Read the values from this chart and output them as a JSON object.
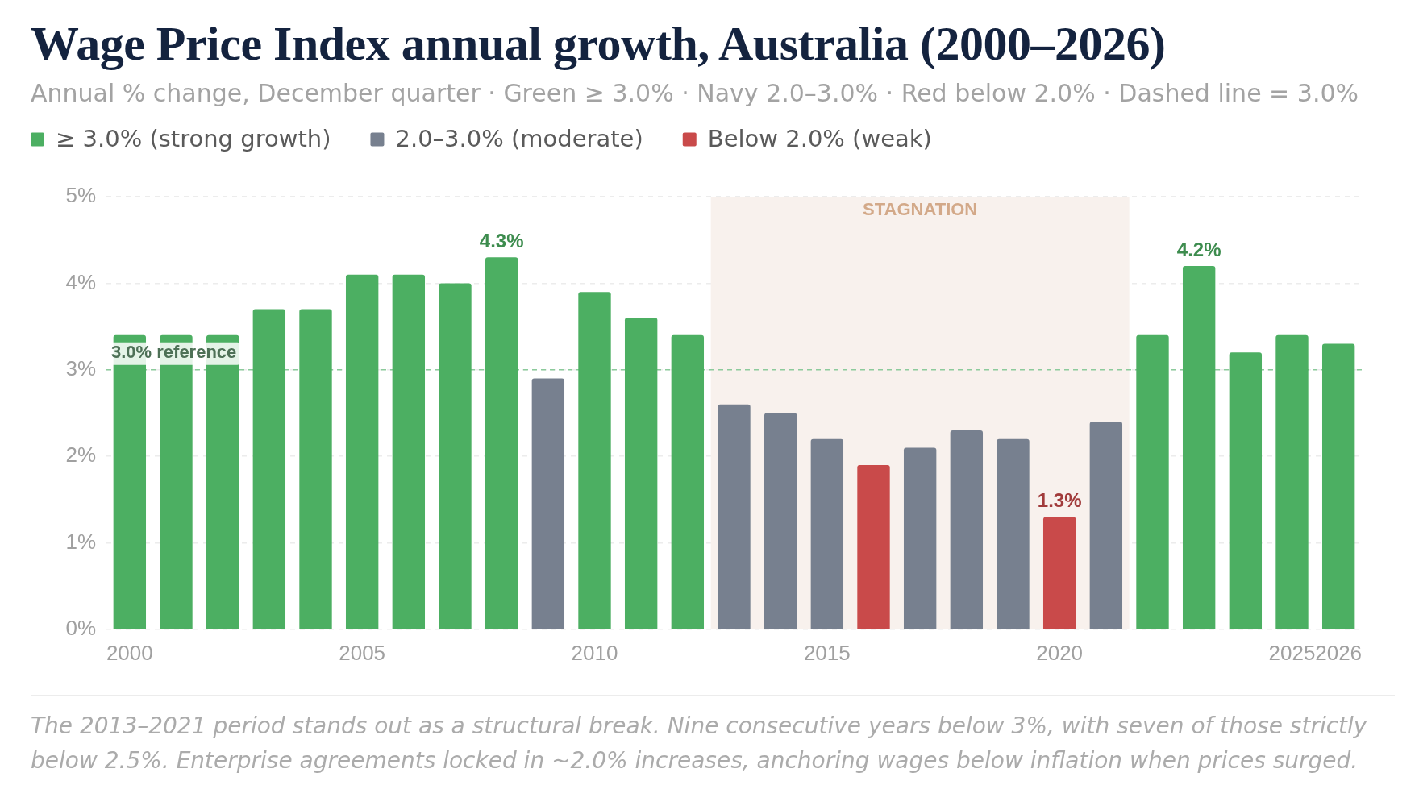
{
  "chart_data": {
    "type": "bar",
    "title": "Wage Price Index annual growth, Australia (2000–2026)",
    "subtitle": "Annual % change, December quarter · Green ≥ 3.0% · Navy 2.0–3.0% · Red below 2.0% · Dashed line = 3.0%",
    "x": [
      2000,
      2001,
      2002,
      2003,
      2004,
      2005,
      2006,
      2007,
      2008,
      2009,
      2010,
      2011,
      2012,
      2013,
      2014,
      2015,
      2016,
      2017,
      2018,
      2019,
      2020,
      2021,
      2022,
      2023,
      2024,
      2025,
      2026
    ],
    "series": [
      {
        "name": "≥ 3.0% (strong growth)",
        "color": "#4caf62",
        "values": [
          3.4,
          3.4,
          3.4,
          3.7,
          3.7,
          4.1,
          4.1,
          4.0,
          4.3,
          null,
          3.9,
          3.6,
          3.4,
          null,
          null,
          null,
          null,
          null,
          null,
          null,
          null,
          null,
          3.4,
          4.2,
          3.2,
          3.4,
          3.3
        ],
        "value_labels": [
          null,
          null,
          null,
          null,
          null,
          null,
          null,
          null,
          "4.3%",
          null,
          null,
          null,
          null,
          null,
          null,
          null,
          null,
          null,
          null,
          null,
          null,
          null,
          null,
          "4.2%",
          null,
          null,
          null
        ]
      },
      {
        "name": "2.0–3.0% (moderate)",
        "color": "#77808f",
        "values": [
          null,
          null,
          null,
          null,
          null,
          null,
          null,
          null,
          null,
          2.9,
          null,
          null,
          null,
          2.6,
          2.5,
          2.2,
          null,
          2.1,
          2.3,
          2.2,
          null,
          2.4,
          null,
          null,
          null,
          null,
          null
        ]
      },
      {
        "name": "Below 2.0% (weak)",
        "color": "#c94a4a",
        "values": [
          null,
          null,
          null,
          null,
          null,
          null,
          null,
          null,
          null,
          null,
          null,
          null,
          null,
          null,
          null,
          null,
          1.9,
          null,
          null,
          null,
          1.3,
          null,
          null,
          null,
          null,
          null,
          null
        ],
        "value_labels": [
          null,
          null,
          null,
          null,
          null,
          null,
          null,
          null,
          null,
          null,
          null,
          null,
          null,
          null,
          null,
          null,
          null,
          null,
          null,
          null,
          "1.3%",
          null,
          null,
          null,
          null,
          null,
          null
        ]
      }
    ],
    "xlim": [
      1999.5,
      2026.5
    ],
    "xticks": [
      2000,
      2005,
      2010,
      2015,
      2020,
      2025,
      2026
    ],
    "ylim": [
      0,
      5
    ],
    "yticks": [
      {
        "value": 0,
        "label": "0%"
      },
      {
        "value": 1,
        "label": "1%"
      },
      {
        "value": 2,
        "label": "2%"
      },
      {
        "value": 3,
        "label": "3%"
      },
      {
        "value": 4,
        "label": "4%"
      },
      {
        "value": 5,
        "label": "5%"
      }
    ],
    "grid": "y",
    "legend": "top left",
    "ref_lines": [
      {
        "axis": "y",
        "value": 3.0,
        "label": "3.0% reference",
        "color": "#8ccb9c",
        "line_style": "dashed"
      }
    ],
    "bands": [
      {
        "axis": "x",
        "from": 2012.5,
        "to": 2021.5,
        "label": "STAGNATION",
        "color": "#f8f1ed"
      }
    ],
    "annotations": [
      "The 2013–2021 period stands out as a structural break. Nine consecutive years below 3%, with seven of those strictly below 2.5%. Enterprise agreements locked in ~2.0% increases, anchoring wages below inflation when prices surged."
    ]
  }
}
